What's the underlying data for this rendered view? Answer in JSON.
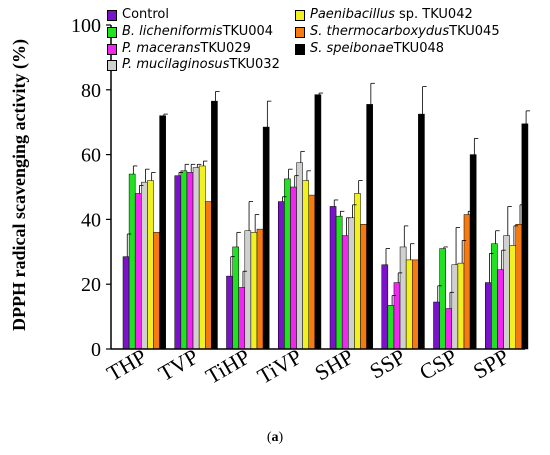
{
  "chart_data": {
    "type": "bar",
    "ylabel": "DPPH radical scavenging activity (%)",
    "ylim": [
      0,
      100
    ],
    "yticks": [
      0,
      20,
      40,
      60,
      80,
      100
    ],
    "categories": [
      "THP",
      "TVP",
      "TiHP",
      "TiVP",
      "SHP",
      "SSP",
      "CSP",
      "SPP"
    ],
    "legend_placement": "top",
    "series": [
      {
        "name_italic": "",
        "name_rest": "Control",
        "color": "#7a12c8",
        "values": [
          28.5,
          53.5,
          22.5,
          45.5,
          44,
          26,
          14.5,
          20.5
        ],
        "errors": [
          7,
          1,
          6,
          1.5,
          2,
          5,
          5,
          9
        ]
      },
      {
        "name_italic": "B. licheniformis",
        "name_rest": " TKU004",
        "color": "#22e022",
        "values": [
          54,
          55,
          31.5,
          52.5,
          41,
          13.5,
          31,
          32.5
        ],
        "errors": [
          2.5,
          2,
          4.5,
          3,
          1.5,
          3,
          0.5,
          4
        ]
      },
      {
        "name_italic": "P. macerans",
        "name_rest": " TKU029",
        "color": "#ee28ee",
        "values": [
          48,
          54.5,
          19,
          50,
          35,
          20.5,
          12.5,
          24.5
        ],
        "errors": [
          2.5,
          2.5,
          5,
          3.5,
          5.5,
          3,
          5,
          6
        ]
      },
      {
        "name_italic": "P. mucilaginosus",
        "name_rest": " TKU032",
        "color": "#d0d0d0",
        "values": [
          51.5,
          56,
          36.5,
          57.5,
          40.5,
          31.5,
          26,
          35
        ],
        "errors": [
          4,
          1,
          9,
          3.5,
          4,
          6.5,
          11.5,
          9
        ]
      },
      {
        "name_italic": "",
        "name_rest": "Paenibacillus sp. TKU042",
        "color": "#f0f022",
        "values": [
          52,
          56.5,
          36,
          52,
          48,
          27.5,
          26.5,
          32
        ],
        "errors": [
          2.5,
          1.5,
          5.5,
          3,
          4,
          5,
          7,
          6
        ]
      },
      {
        "name_italic": "S. thermocarboxydus",
        "name_rest": " TKU045",
        "color": "#f57a12",
        "values": [
          36,
          45.5,
          37,
          47.5,
          38.5,
          27.5,
          41.5,
          38.5
        ],
        "errors": [
          0,
          0,
          0,
          0,
          0,
          0,
          1,
          6
        ]
      },
      {
        "name_italic": "S. speibonae",
        "name_rest": " TKU048",
        "color": "#000000",
        "values": [
          72,
          76.5,
          68.5,
          78.5,
          75.5,
          72.5,
          60,
          69.5
        ],
        "errors": [
          0.5,
          3,
          8,
          0.5,
          6.5,
          8.5,
          5,
          4
        ]
      }
    ]
  },
  "caption": {
    "open": "(",
    "letter": "a",
    "close": ")"
  }
}
